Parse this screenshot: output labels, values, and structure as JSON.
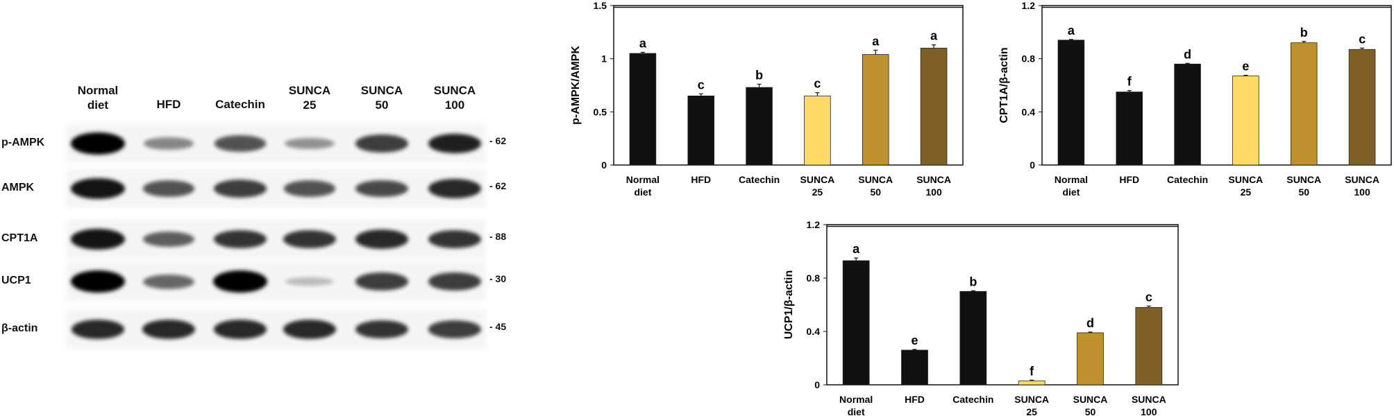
{
  "blot": {
    "lanes": [
      {
        "l1": "Normal",
        "l2": "diet"
      },
      {
        "l1": "HFD",
        "l2": ""
      },
      {
        "l1": "Catechin",
        "l2": ""
      },
      {
        "l1": "SUNCA",
        "l2": "25"
      },
      {
        "l1": "SUNCA",
        "l2": "50"
      },
      {
        "l1": "SUNCA",
        "l2": "100"
      }
    ],
    "rows": [
      {
        "label": "p-AMPK",
        "mw": "- 62",
        "intensity": [
          1.0,
          0.35,
          0.6,
          0.3,
          0.7,
          0.85
        ]
      },
      {
        "label": "AMPK",
        "mw": "- 62",
        "intensity": [
          0.9,
          0.6,
          0.7,
          0.6,
          0.65,
          0.8
        ]
      },
      {
        "label": "CPT1A",
        "mw": "- 88",
        "intensity": [
          0.9,
          0.55,
          0.75,
          0.75,
          0.8,
          0.75
        ]
      },
      {
        "label": "UCP1",
        "mw": "- 30",
        "intensity": [
          1.0,
          0.5,
          1.0,
          0.1,
          0.7,
          0.7
        ]
      },
      {
        "label": "β-actin",
        "mw": "- 45",
        "intensity": [
          0.8,
          0.8,
          0.8,
          0.8,
          0.75,
          0.7
        ]
      }
    ]
  },
  "colors": {
    "bars": [
      "#111111",
      "#111111",
      "#111111",
      "#FFD966",
      "#C0922F",
      "#7F6128"
    ]
  },
  "chart_data": [
    {
      "type": "bar",
      "ylabel": "p-AMPK/AMPK",
      "ylim": [
        0,
        1.5
      ],
      "yticks": [
        "0",
        "0.5",
        "1",
        "1.5"
      ],
      "ytick_values": [
        0,
        0.5,
        1,
        1.5
      ],
      "categories": [
        [
          "Normal",
          "diet"
        ],
        [
          "HFD",
          ""
        ],
        [
          "Catechin",
          ""
        ],
        [
          "SUNCA",
          "25"
        ],
        [
          "SUNCA",
          "50"
        ],
        [
          "SUNCA",
          "100"
        ]
      ],
      "values": [
        1.05,
        0.65,
        0.73,
        0.65,
        1.04,
        1.1
      ],
      "errors": [
        0.01,
        0.02,
        0.03,
        0.03,
        0.04,
        0.03
      ],
      "letters": [
        "a",
        "c",
        "b",
        "c",
        "a",
        "a"
      ]
    },
    {
      "type": "bar",
      "ylabel": "CPT1A/β-actin",
      "ylim": [
        0,
        1.2
      ],
      "yticks": [
        "0",
        "0.4",
        "0.8",
        "1.2"
      ],
      "ytick_values": [
        0,
        0.4,
        0.8,
        1.2
      ],
      "categories": [
        [
          "Normal",
          "diet"
        ],
        [
          "HFD",
          ""
        ],
        [
          "Catechin",
          ""
        ],
        [
          "SUNCA",
          "25"
        ],
        [
          "SUNCA",
          "50"
        ],
        [
          "SUNCA",
          "100"
        ]
      ],
      "values": [
        0.94,
        0.55,
        0.76,
        0.67,
        0.92,
        0.87
      ],
      "errors": [
        0.005,
        0.01,
        0.005,
        0.005,
        0.01,
        0.01
      ],
      "letters": [
        "a",
        "f",
        "d",
        "e",
        "b",
        "c"
      ]
    },
    {
      "type": "bar",
      "ylabel": "UCP1/β-actin",
      "ylim": [
        0,
        1.2
      ],
      "yticks": [
        "0",
        "0.4",
        "0.8",
        "1.2"
      ],
      "ytick_values": [
        0,
        0.4,
        0.8,
        1.2
      ],
      "categories": [
        [
          "Normal",
          "diet"
        ],
        [
          "HFD",
          ""
        ],
        [
          "Catechin",
          ""
        ],
        [
          "SUNCA",
          "25"
        ],
        [
          "SUNCA",
          "50"
        ],
        [
          "SUNCA",
          "100"
        ]
      ],
      "values": [
        0.93,
        0.26,
        0.7,
        0.03,
        0.39,
        0.58
      ],
      "errors": [
        0.02,
        0.005,
        0.005,
        0.005,
        0.005,
        0.01
      ],
      "letters": [
        "a",
        "e",
        "b",
        "f",
        "d",
        "c"
      ]
    }
  ]
}
